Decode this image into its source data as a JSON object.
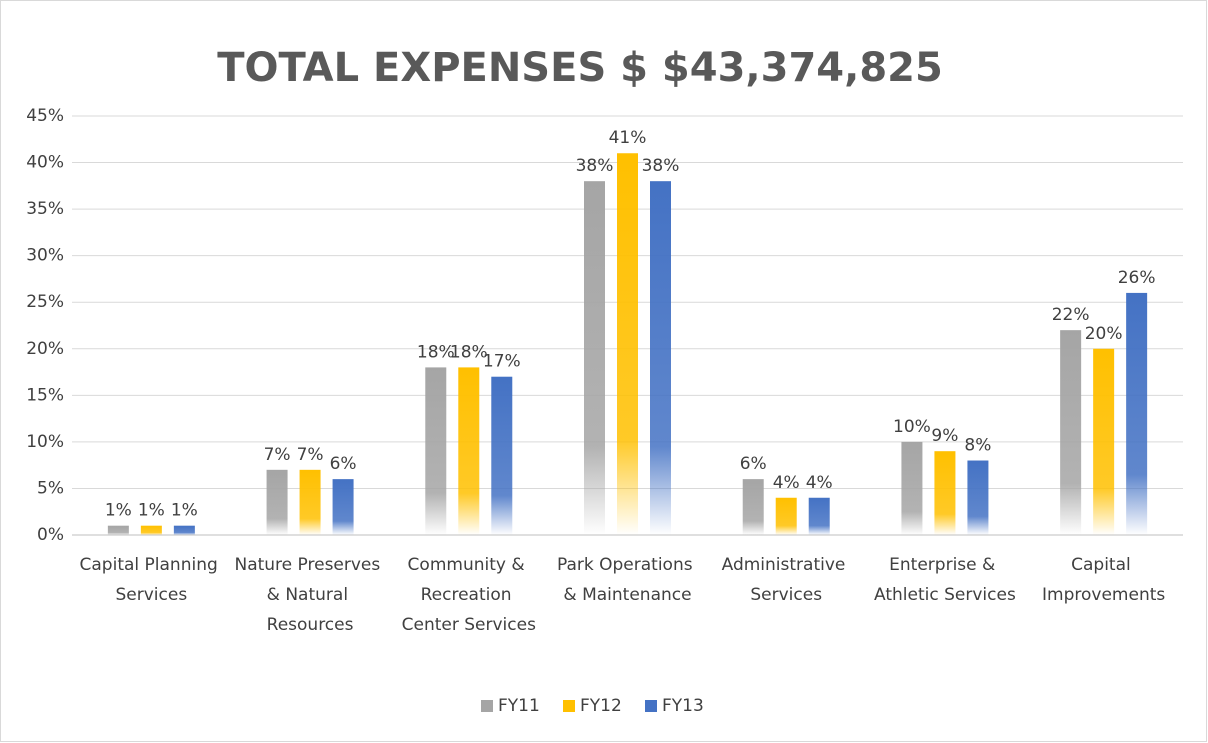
{
  "chart_data": {
    "type": "bar",
    "title": "TOTAL EXPENSES $ $43,374,825",
    "categories": [
      "Capital Planning Services",
      "Nature Preserves & Natural Resources",
      "Community & Recreation Center Services",
      "Park Operations & Maintenance",
      "Administrative Services",
      "Enterprise & Athletic Services",
      "Capital Improvements"
    ],
    "series": [
      {
        "name": "FY11",
        "color": "#a5a5a5",
        "values": [
          1,
          7,
          18,
          38,
          6,
          10,
          22
        ],
        "value_labels": [
          "1%",
          "7%",
          "18%",
          "38%",
          "6%",
          "10%",
          "22%"
        ]
      },
      {
        "name": "FY12",
        "color": "#ffc000",
        "values": [
          1,
          7,
          18,
          41,
          4,
          9,
          20
        ],
        "value_labels": [
          "1%",
          "7%",
          "18%",
          "41%",
          "4%",
          "9%",
          "20%"
        ]
      },
      {
        "name": "FY13",
        "color": "#4472c4",
        "values": [
          1,
          6,
          17,
          38,
          4,
          8,
          26
        ],
        "value_labels": [
          "1%",
          "6%",
          "17%",
          "38%",
          "4%",
          "8%",
          "26%"
        ]
      }
    ],
    "ylim": [
      0,
      45
    ],
    "yticks": [
      {
        "value": 0,
        "label": "0%"
      },
      {
        "value": 5,
        "label": "5%"
      },
      {
        "value": 10,
        "label": "10%"
      },
      {
        "value": 15,
        "label": "15%"
      },
      {
        "value": 20,
        "label": "20%"
      },
      {
        "value": 25,
        "label": "25%"
      },
      {
        "value": 30,
        "label": "30%"
      },
      {
        "value": 35,
        "label": "35%"
      },
      {
        "value": 40,
        "label": "40%"
      },
      {
        "value": 45,
        "label": "45%"
      }
    ],
    "grid": true,
    "legend": "bottom"
  }
}
